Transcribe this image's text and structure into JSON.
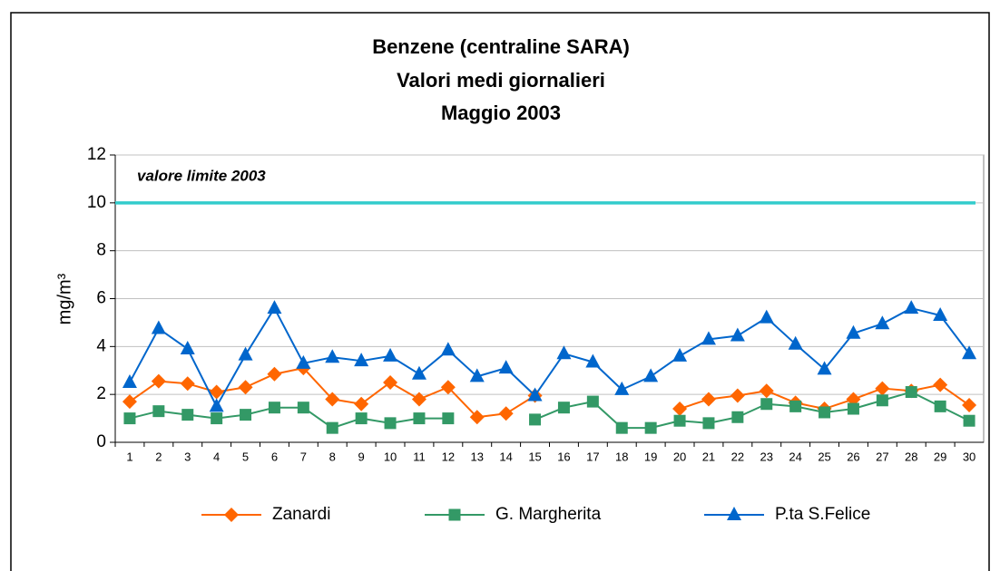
{
  "chart_data": {
    "type": "line",
    "title": [
      "Benzene (centraline SARA)",
      "Valori medi giornalieri",
      "Maggio 2003"
    ],
    "y_label": "mg/m³",
    "categories": [
      1,
      2,
      3,
      4,
      5,
      6,
      7,
      8,
      9,
      10,
      11,
      12,
      13,
      14,
      15,
      16,
      17,
      18,
      19,
      20,
      21,
      22,
      23,
      24,
      25,
      26,
      27,
      28,
      29,
      30
    ],
    "series": [
      {
        "name": "Zanardi",
        "color": "#ff6600",
        "marker": "diamond",
        "values": [
          1.7,
          2.55,
          2.45,
          2.1,
          2.3,
          2.85,
          3.1,
          1.8,
          1.6,
          2.5,
          1.8,
          2.3,
          1.05,
          1.2,
          1.95,
          null,
          null,
          null,
          null,
          1.4,
          1.8,
          1.95,
          2.15,
          1.65,
          1.4,
          1.8,
          2.25,
          2.15,
          2.4,
          1.55
        ]
      },
      {
        "name": "G. Margherita",
        "color": "#339966",
        "marker": "square",
        "values": [
          1.0,
          1.3,
          1.15,
          1.0,
          1.15,
          1.45,
          1.45,
          0.6,
          1.0,
          0.8,
          1.0,
          1.0,
          null,
          null,
          0.95,
          1.45,
          1.7,
          0.6,
          0.6,
          0.9,
          0.8,
          1.05,
          1.6,
          1.5,
          1.25,
          1.4,
          1.75,
          2.1,
          1.5,
          0.9
        ]
      },
      {
        "name": "P.ta S.Felice",
        "color": "#0066cc",
        "marker": "triangle",
        "values": [
          2.5,
          4.75,
          3.9,
          1.5,
          3.65,
          5.6,
          3.3,
          3.55,
          3.4,
          3.6,
          2.85,
          3.85,
          2.75,
          3.1,
          1.95,
          3.7,
          3.35,
          2.2,
          2.75,
          3.6,
          4.3,
          4.45,
          5.2,
          4.1,
          3.05,
          4.55,
          4.95,
          5.6,
          5.3,
          3.7
        ]
      }
    ],
    "reference_line": {
      "value": 10,
      "label": "valore limite 2003",
      "color": "#33cccc"
    },
    "ylim": [
      0,
      12
    ],
    "yticks": [
      0,
      2,
      4,
      6,
      8,
      10,
      12
    ],
    "grid": true,
    "legend": "bottom"
  }
}
